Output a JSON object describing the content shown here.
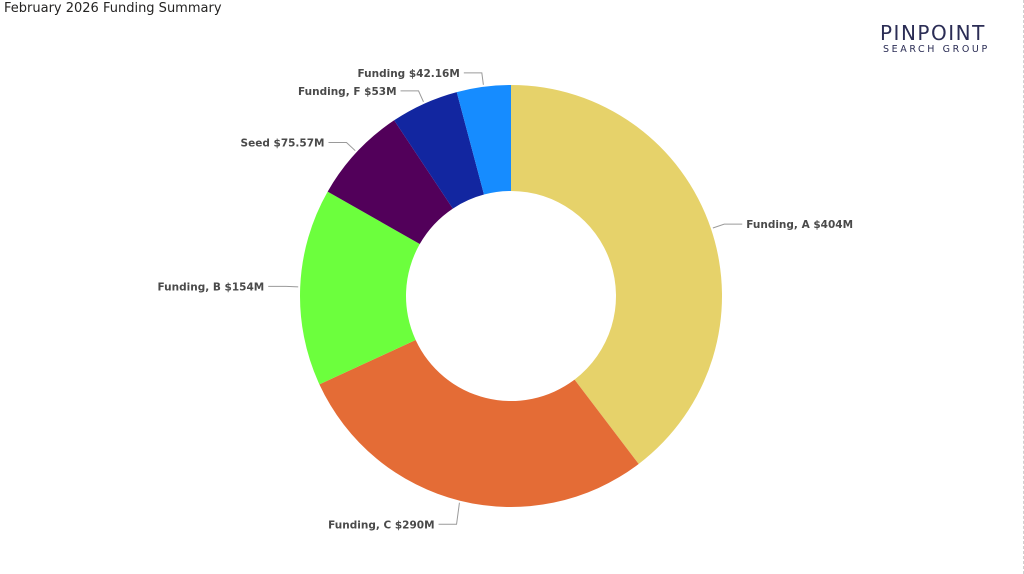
{
  "title": "February 2026 Funding Summary",
  "logo": {
    "main": "PINPOINT",
    "sub": "SEARCH GROUP",
    "color": "#2b2d55"
  },
  "chart_data": {
    "type": "pie",
    "donut": true,
    "title": "February 2026 Funding Summary",
    "legend": "none",
    "start": "top",
    "direction": "clockwise",
    "slices": [
      {
        "label": "Funding, A",
        "value": 404,
        "value_label": "$404M",
        "color": "#E6D26A"
      },
      {
        "label": "Funding, C",
        "value": 290,
        "value_label": "$290M",
        "color": "#E46C36"
      },
      {
        "label": "Funding, B",
        "value": 154,
        "value_label": "$154M",
        "color": "#6CFF3D"
      },
      {
        "label": "Seed",
        "value": 75.57,
        "value_label": "$75.57M",
        "color": "#52005A"
      },
      {
        "label": "Funding, F",
        "value": 53,
        "value_label": "$53M",
        "color": "#1226A0"
      },
      {
        "label": "Funding",
        "value": 42.16,
        "value_label": "$42.16M",
        "color": "#168CFF"
      }
    ]
  }
}
